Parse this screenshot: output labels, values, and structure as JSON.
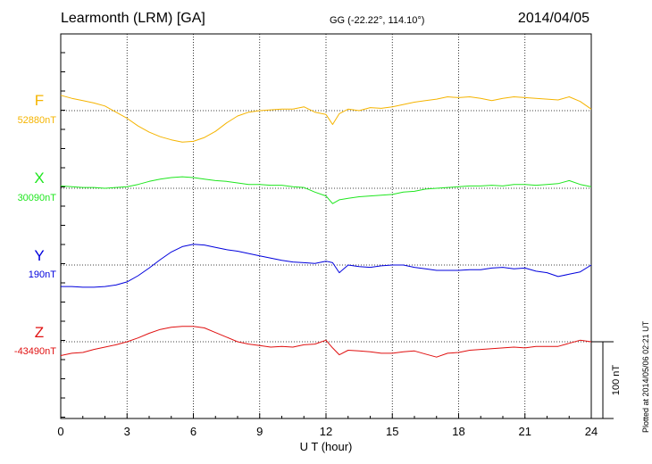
{
  "header": {
    "station": "Learmonth (LRM)  [GA]",
    "coords": "GG (-22.22°, 114.10°)",
    "date": "2014/04/05"
  },
  "footnote": "Plotted at 2014/05/06 02:21  UT",
  "colors": {
    "F": "#f5b400",
    "X": "#1ee61e",
    "Y": "#0000dd",
    "Z": "#e01010"
  },
  "chart_data": {
    "type": "line",
    "title": "",
    "xlabel": "U T (hour)",
    "xlim": [
      0,
      24
    ],
    "x_ticks": [
      "0",
      "3",
      "6",
      "9",
      "12",
      "15",
      "18",
      "21",
      "24"
    ],
    "grid": true,
    "scale_bar": {
      "label": "100 nT",
      "value_nT": 100
    },
    "series": [
      {
        "name": "F",
        "baseline_label": "52880nT",
        "baseline": 52880,
        "color": "#f5b400",
        "x": [
          0,
          0.5,
          1,
          1.5,
          2,
          2.5,
          3,
          3.5,
          4,
          4.5,
          5,
          5.5,
          6,
          6.5,
          7,
          7.5,
          8,
          8.5,
          9,
          9.5,
          10,
          10.5,
          11,
          11.5,
          12,
          12.3,
          12.6,
          13,
          13.5,
          14,
          14.5,
          15,
          15.5,
          16,
          16.5,
          17,
          17.5,
          18,
          18.5,
          19,
          19.5,
          20,
          20.5,
          21,
          21.5,
          22,
          22.5,
          23,
          23.5,
          24
        ],
        "y": [
          52900,
          52896,
          52893,
          52890,
          52886,
          52878,
          52870,
          52860,
          52852,
          52846,
          52842,
          52839,
          52840,
          52845,
          52853,
          52864,
          52873,
          52878,
          52880,
          52881,
          52882,
          52882,
          52885,
          52878,
          52875,
          52862,
          52876,
          52882,
          52880,
          52884,
          52883,
          52885,
          52888,
          52891,
          52893,
          52895,
          52898,
          52897,
          52898,
          52896,
          52893,
          52896,
          52898,
          52897,
          52896,
          52895,
          52894,
          52898,
          52892,
          52882
        ]
      },
      {
        "name": "X",
        "baseline_label": "30090nT",
        "baseline": 30090,
        "color": "#1ee61e",
        "x": [
          0,
          0.5,
          1,
          1.5,
          2,
          2.5,
          3,
          3.5,
          4,
          4.5,
          5,
          5.5,
          6,
          6.5,
          7,
          7.5,
          8,
          8.5,
          9,
          9.5,
          10,
          10.5,
          11,
          11.5,
          12,
          12.3,
          12.6,
          13,
          13.5,
          14,
          14.5,
          15,
          15.5,
          16,
          16.5,
          17,
          17.5,
          18,
          18.5,
          19,
          19.5,
          20,
          20.5,
          21,
          21.5,
          22,
          22.5,
          23,
          23.5,
          24
        ],
        "y": [
          30093,
          30092,
          30091,
          30091,
          30090,
          30091,
          30092,
          30095,
          30099,
          30102,
          30104,
          30105,
          30104,
          30102,
          30100,
          30099,
          30097,
          30095,
          30095,
          30094,
          30094,
          30092,
          30091,
          30085,
          30080,
          30070,
          30075,
          30077,
          30079,
          30080,
          30081,
          30082,
          30085,
          30086,
          30089,
          30090,
          30091,
          30092,
          30093,
          30093,
          30094,
          30093,
          30095,
          30095,
          30094,
          30095,
          30096,
          30100,
          30095,
          30092
        ]
      },
      {
        "name": "Y",
        "baseline_label": "190nT",
        "baseline": 190,
        "color": "#0000dd",
        "x": [
          0,
          0.5,
          1,
          1.5,
          2,
          2.5,
          3,
          3.5,
          4,
          4.5,
          5,
          5.5,
          6,
          6.5,
          7,
          7.5,
          8,
          8.5,
          9,
          9.5,
          10,
          10.5,
          11,
          11.5,
          12,
          12.3,
          12.6,
          13,
          13.5,
          14,
          14.5,
          15,
          15.5,
          16,
          16.5,
          17,
          17.5,
          18,
          18.5,
          19,
          19.5,
          20,
          20.5,
          21,
          21.5,
          22,
          22.5,
          23,
          23.5,
          24
        ],
        "y": [
          162,
          162,
          161,
          161,
          162,
          164,
          168,
          176,
          186,
          197,
          207,
          214,
          217,
          216,
          213,
          210,
          208,
          205,
          202,
          199,
          196,
          194,
          193,
          192,
          195,
          193,
          180,
          190,
          188,
          187,
          189,
          190,
          190,
          187,
          185,
          183,
          183,
          183,
          184,
          184,
          186,
          187,
          185,
          186,
          182,
          180,
          175,
          178,
          181,
          190
        ]
      },
      {
        "name": "Z",
        "baseline_label": "-43490nT",
        "baseline": -43490,
        "color": "#e01010",
        "x": [
          0,
          0.5,
          1,
          1.5,
          2,
          2.5,
          3,
          3.5,
          4,
          4.5,
          5,
          5.5,
          6,
          6.5,
          7,
          7.5,
          8,
          8.5,
          9,
          9.5,
          10,
          10.5,
          11,
          11.5,
          12,
          12.3,
          12.6,
          13,
          13.5,
          14,
          14.5,
          15,
          15.5,
          16,
          16.5,
          17,
          17.5,
          18,
          18.5,
          19,
          19.5,
          20,
          20.5,
          21,
          21.5,
          22,
          22.5,
          23,
          23.5,
          24
        ],
        "y": [
          -43508,
          -43505,
          -43504,
          -43500,
          -43497,
          -43494,
          -43490,
          -43485,
          -43479,
          -43474,
          -43471,
          -43470,
          -43470,
          -43472,
          -43478,
          -43484,
          -43490,
          -43493,
          -43495,
          -43497,
          -43496,
          -43497,
          -43494,
          -43493,
          -43488,
          -43498,
          -43507,
          -43501,
          -43502,
          -43503,
          -43505,
          -43505,
          -43503,
          -43502,
          -43506,
          -43510,
          -43505,
          -43504,
          -43501,
          -43500,
          -43499,
          -43498,
          -43497,
          -43498,
          -43496,
          -43496,
          -43496,
          -43492,
          -43488,
          -43490
        ]
      }
    ]
  }
}
